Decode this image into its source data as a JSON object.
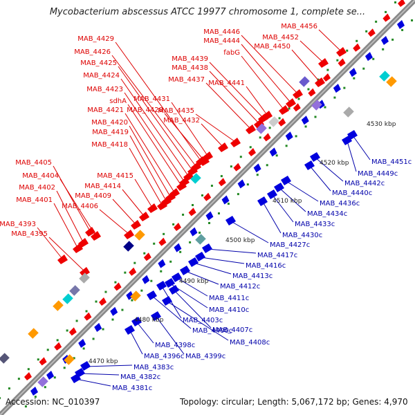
{
  "title": "Mycobacterium abscessus ATCC 19977 chromosome 1, complete se...",
  "footer": {
    "accession": "Accession: NC_010397",
    "summary": "Topology: circular; Length: 5,067,172 bp; Genes: 4,970"
  },
  "colors": {
    "forward_label": "#dd0000",
    "reverse_label": "#0000aa",
    "forward_gene": "#ee0000",
    "reverse_gene": "#0000dd",
    "backbone": "#777777",
    "tick": "#228822"
  },
  "scale_ticks": [
    "4470 kbp",
    "4480 kbp",
    "4490 kbp",
    "4500 kbp",
    "4510 kbp",
    "4520 kbp",
    "4530 kbp"
  ],
  "forward_genes": [
    "MAB_4456",
    "MAB_4452",
    "MAB_4446",
    "MAB_4444",
    "MAB_4450",
    "fabG",
    "MAB_4429",
    "MAB_4426",
    "MAB_4439",
    "MAB_4438",
    "MAB_4425",
    "MAB_4424",
    "MAB_4437",
    "MAB_4441",
    "MAB_4423",
    "MAB_4431",
    "sdhA",
    "MAB_4428",
    "MAB_4435",
    "MAB_4421",
    "MAB_4432",
    "MAB_4420",
    "MAB_4419",
    "MAB_4418",
    "MAB_4405",
    "MAB_4404",
    "MAB_4415",
    "MAB_4402",
    "MAB_4414",
    "MAB_4409",
    "MAB_4401",
    "MAB_4406",
    "MAB_4393",
    "MAB_4395"
  ],
  "reverse_genes": [
    "MAB_4451c",
    "MAB_4449c",
    "MAB_4442c",
    "MAB_4440c",
    "MAB_4436c",
    "MAB_4434c",
    "MAB_4433c",
    "MAB_4430c",
    "MAB_4427c",
    "MAB_4417c",
    "MAB_4416c",
    "MAB_4413c",
    "MAB_4412c",
    "MAB_4411c",
    "MAB_4410c",
    "MAB_4403c",
    "MAB_4407c",
    "MAB_4400c",
    "MAB_4408c",
    "MAB_4398c",
    "MAB_4396c",
    "MAB_4399c",
    "MAB_4383c",
    "MAB_4382c",
    "MAB_4381c"
  ]
}
